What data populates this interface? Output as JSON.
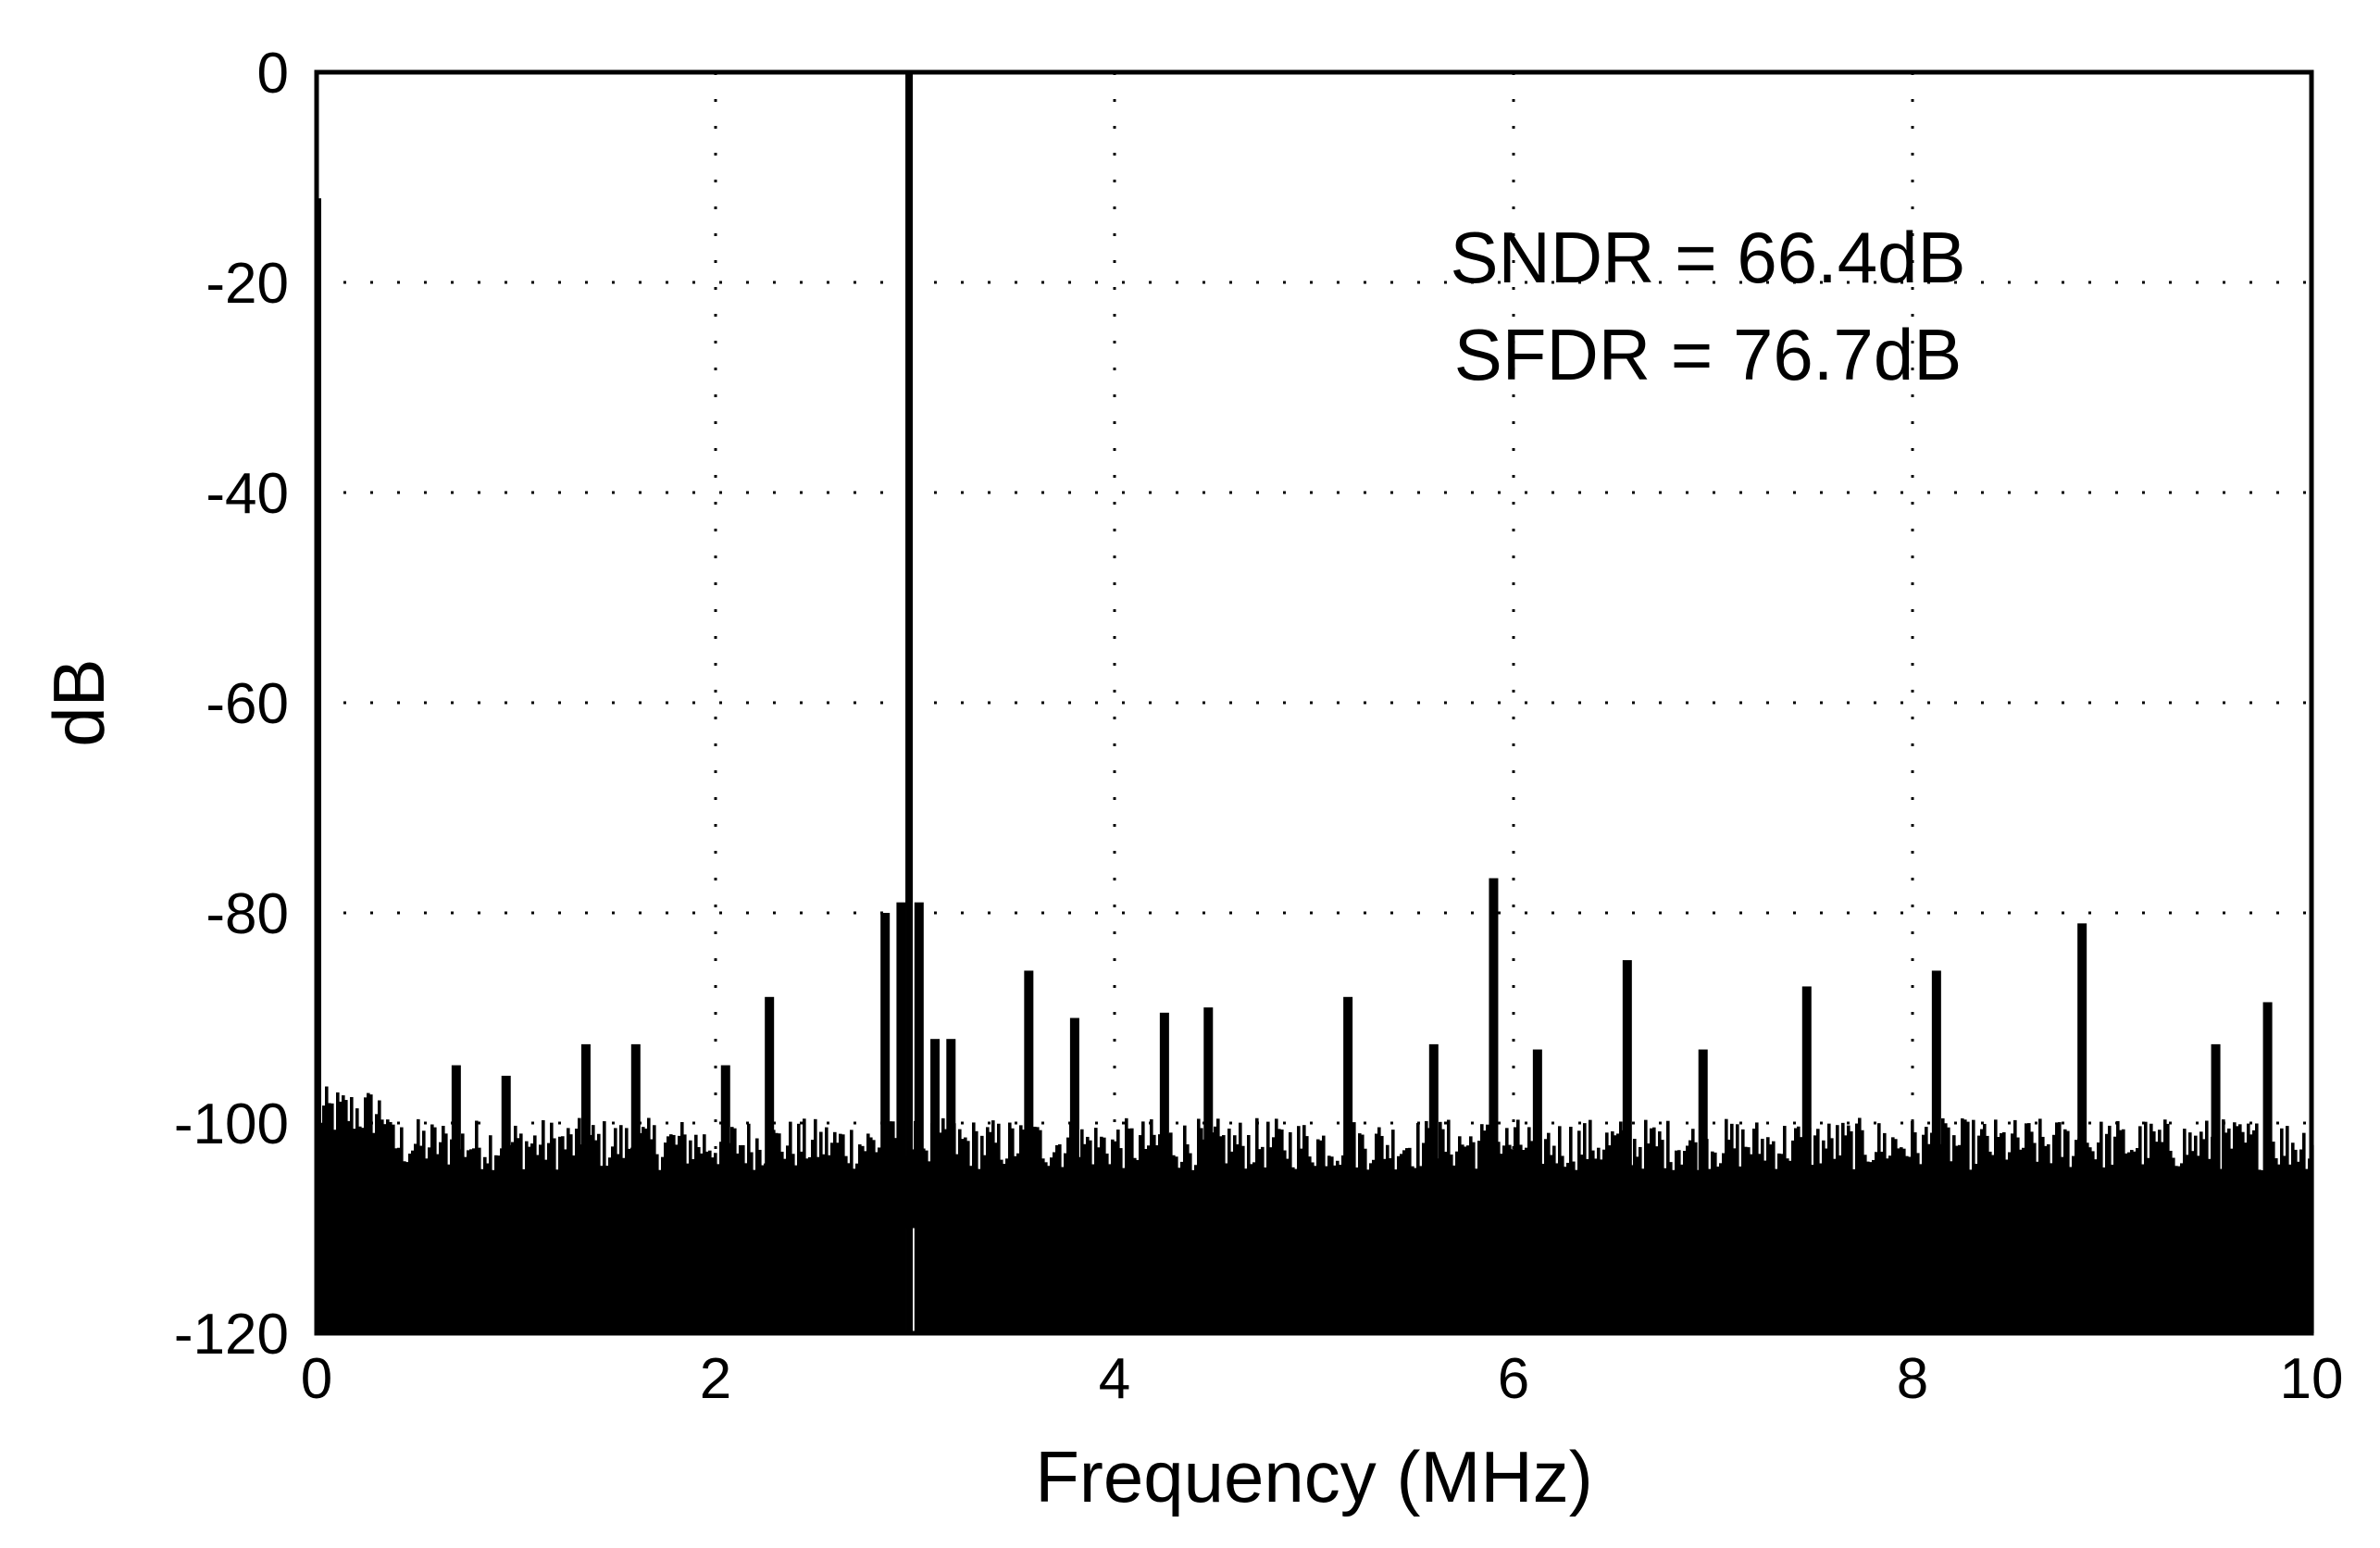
{
  "chart_data": {
    "type": "bar",
    "title": "",
    "xlabel": "Frequency (MHz)",
    "ylabel": "dB",
    "xlim": [
      0,
      10
    ],
    "ylim": [
      -120,
      0
    ],
    "xticks": [
      0,
      2,
      4,
      6,
      8,
      10
    ],
    "xtick_labels": [
      "0",
      "2",
      "4",
      "6",
      "8",
      "10"
    ],
    "yticks": [
      0,
      -20,
      -40,
      -60,
      -80,
      -100,
      -120
    ],
    "ytick_labels": [
      "0",
      "-20",
      "-40",
      "-60",
      "-80",
      "-100",
      "-120"
    ],
    "grid": "dotted",
    "legend": "none",
    "annotations": [
      "SNDR = 66.4dB",
      "SFDR = 76.7dB"
    ],
    "colors": {
      "series": "#000000",
      "background": "#ffffff"
    },
    "noise_floor_db": -102,
    "fundamental": {
      "x": 2.97,
      "y": 0
    },
    "dc_spike": {
      "x": 0.0,
      "y": -12
    },
    "spurs": [
      {
        "x": 0.7,
        "y": -94.5
      },
      {
        "x": 0.95,
        "y": -95.5
      },
      {
        "x": 1.35,
        "y": -92.5
      },
      {
        "x": 1.6,
        "y": -92.5
      },
      {
        "x": 2.05,
        "y": -94.5
      },
      {
        "x": 2.27,
        "y": -88
      },
      {
        "x": 2.85,
        "y": -80
      },
      {
        "x": 2.93,
        "y": -79
      },
      {
        "x": 3.02,
        "y": -79
      },
      {
        "x": 3.1,
        "y": -92
      },
      {
        "x": 3.18,
        "y": -92
      },
      {
        "x": 3.57,
        "y": -85.5
      },
      {
        "x": 3.8,
        "y": -90
      },
      {
        "x": 4.25,
        "y": -89.5
      },
      {
        "x": 4.47,
        "y": -89
      },
      {
        "x": 5.17,
        "y": -88
      },
      {
        "x": 5.6,
        "y": -92.5
      },
      {
        "x": 5.9,
        "y": -76.7
      },
      {
        "x": 6.12,
        "y": -93
      },
      {
        "x": 6.57,
        "y": -84.5
      },
      {
        "x": 6.95,
        "y": -93
      },
      {
        "x": 7.47,
        "y": -87
      },
      {
        "x": 8.12,
        "y": -85.5
      },
      {
        "x": 8.85,
        "y": -81
      },
      {
        "x": 9.52,
        "y": -92.5
      },
      {
        "x": 9.78,
        "y": -88.5
      }
    ]
  }
}
